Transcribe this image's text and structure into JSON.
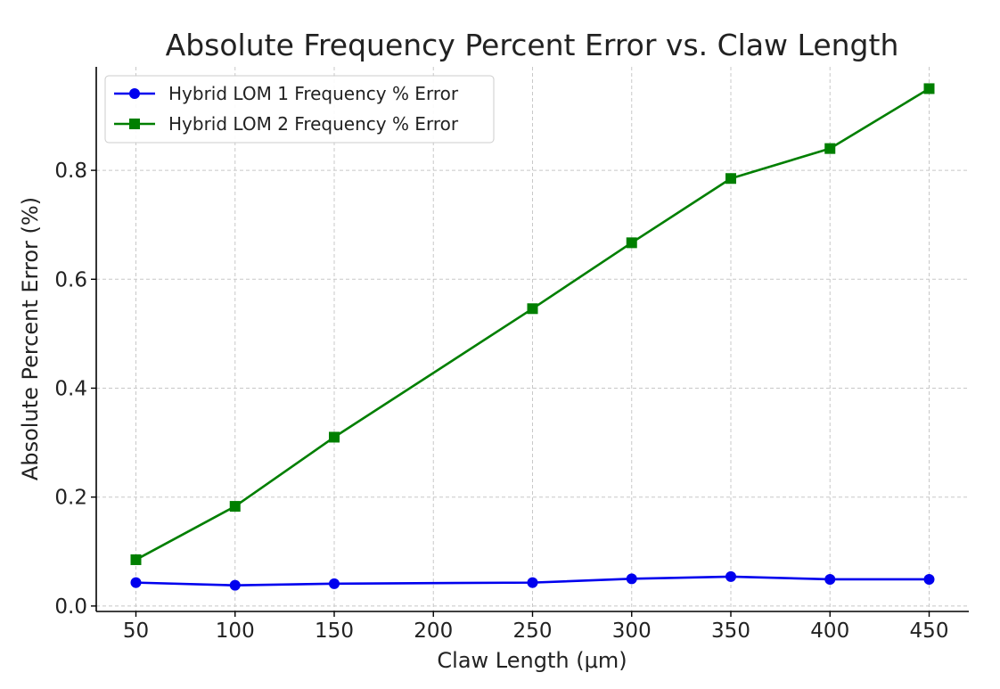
{
  "chart_data": {
    "type": "line",
    "title": "Absolute Frequency Percent Error vs. Claw Length",
    "xlabel": "Claw Length (μm)",
    "ylabel": "Absolute Percent Error (%)",
    "x": [
      50,
      100,
      150,
      250,
      300,
      350,
      400,
      450
    ],
    "xlim": [
      30,
      470
    ],
    "ylim": [
      -0.01,
      0.99
    ],
    "xticks": [
      50,
      100,
      150,
      200,
      250,
      300,
      350,
      400,
      450
    ],
    "yticks": [
      0.0,
      0.2,
      0.4,
      0.6,
      0.8
    ],
    "xtick_labels": [
      "50",
      "100",
      "150",
      "200",
      "250",
      "300",
      "350",
      "400",
      "450"
    ],
    "ytick_labels": [
      "0.0",
      "0.2",
      "0.4",
      "0.6",
      "0.8"
    ],
    "grid": true,
    "legend_position": "top-left",
    "series": [
      {
        "name": "Hybrid LOM 1 Frequency % Error",
        "color": "#0000ee",
        "marker": "circle",
        "values": [
          0.043,
          0.038,
          0.041,
          0.043,
          0.05,
          0.054,
          0.049,
          0.049
        ]
      },
      {
        "name": "Hybrid LOM 2 Frequency % Error",
        "color": "#007f00",
        "marker": "square",
        "values": [
          0.085,
          0.183,
          0.31,
          0.546,
          0.667,
          0.785,
          0.84,
          0.95
        ]
      }
    ]
  }
}
